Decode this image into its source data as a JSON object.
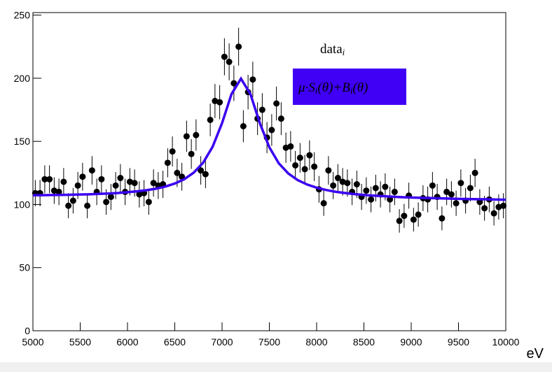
{
  "chart_data": {
    "type": "scatter",
    "x_label": "eV",
    "xlim": [
      5000,
      10000
    ],
    "ylim": [
      0,
      252
    ],
    "xticks": [
      5000,
      5500,
      6000,
      6500,
      7000,
      7500,
      8000,
      8500,
      9000,
      9500,
      10000
    ],
    "yticks": [
      0,
      50,
      100,
      150,
      200,
      250
    ],
    "series": [
      {
        "name": [
          "data",
          "i"
        ],
        "color": "#000000",
        "x": [
          5025,
          5075,
          5125,
          5175,
          5225,
          5275,
          5325,
          5375,
          5425,
          5475,
          5525,
          5575,
          5625,
          5675,
          5725,
          5775,
          5825,
          5875,
          5925,
          5975,
          6025,
          6075,
          6125,
          6175,
          6225,
          6275,
          6325,
          6375,
          6425,
          6475,
          6525,
          6575,
          6625,
          6675,
          6725,
          6775,
          6825,
          6875,
          6925,
          6975,
          7025,
          7075,
          7125,
          7175,
          7225,
          7275,
          7325,
          7375,
          7425,
          7475,
          7525,
          7575,
          7625,
          7675,
          7725,
          7775,
          7825,
          7875,
          7925,
          7975,
          8025,
          8075,
          8125,
          8175,
          8225,
          8275,
          8325,
          8375,
          8425,
          8475,
          8525,
          8575,
          8625,
          8675,
          8725,
          8775,
          8825,
          8875,
          8925,
          8975,
          9025,
          9075,
          9125,
          9175,
          9225,
          9275,
          9325,
          9375,
          9425,
          9475,
          9525,
          9575,
          9625,
          9675,
          9725,
          9775,
          9825,
          9875,
          9925,
          9975
        ],
        "values": [
          109,
          109,
          120,
          120,
          111,
          110,
          118,
          99,
          103,
          115,
          122,
          99,
          127,
          110,
          120,
          102,
          106,
          115,
          121,
          110,
          118,
          117,
          108,
          109,
          102,
          117,
          115,
          116,
          133,
          142,
          125,
          122,
          154,
          140,
          155,
          127,
          124,
          167,
          182,
          181,
          217,
          213,
          196,
          225,
          162,
          189,
          199,
          168,
          175,
          153,
          159,
          180,
          168,
          145,
          146,
          131,
          137,
          128,
          139,
          130,
          112,
          101,
          127,
          115,
          121,
          118,
          117,
          110,
          116,
          106,
          111,
          104,
          113,
          108,
          114,
          104,
          110,
          87,
          91,
          107,
          88,
          92,
          105,
          104,
          115,
          106,
          89,
          110,
          108,
          101,
          117,
          103,
          113,
          125,
          102,
          97,
          104,
          93,
          98,
          99
        ],
        "errors": [
          10.4,
          10.4,
          11.0,
          11.0,
          10.5,
          10.5,
          10.9,
          9.9,
          10.1,
          10.7,
          11.0,
          9.9,
          11.3,
          10.5,
          11.0,
          10.1,
          10.3,
          10.7,
          11.0,
          10.5,
          10.9,
          10.8,
          10.4,
          10.4,
          10.1,
          10.8,
          10.7,
          10.8,
          11.5,
          11.9,
          11.2,
          11.0,
          12.4,
          11.8,
          12.4,
          11.3,
          11.1,
          12.9,
          13.5,
          13.5,
          14.7,
          14.6,
          14.0,
          15.0,
          12.7,
          13.7,
          14.1,
          13.0,
          13.2,
          12.4,
          12.6,
          13.4,
          13.0,
          12.0,
          12.1,
          11.4,
          11.7,
          11.3,
          11.8,
          11.4,
          10.6,
          10.0,
          11.3,
          10.7,
          11.0,
          10.9,
          10.8,
          10.5,
          10.8,
          10.3,
          10.5,
          10.2,
          10.6,
          10.4,
          10.7,
          10.2,
          10.5,
          9.3,
          9.5,
          10.3,
          9.4,
          9.6,
          10.2,
          10.2,
          10.7,
          10.3,
          9.4,
          10.5,
          10.4,
          10.0,
          10.8,
          10.1,
          10.6,
          11.2,
          10.1,
          9.8,
          10.2,
          9.6,
          9.9,
          9.9
        ]
      },
      {
        "name": [
          "μ·S",
          "i",
          "(θ)+B",
          "i",
          "(θ)"
        ],
        "type": "line",
        "color": "#3a00f0",
        "x": [
          5000,
          5100,
          5200,
          5300,
          5400,
          5500,
          5600,
          5700,
          5800,
          5900,
          6000,
          6100,
          6200,
          6300,
          6400,
          6500,
          6600,
          6700,
          6800,
          6900,
          7000,
          7100,
          7200,
          7300,
          7400,
          7500,
          7600,
          7700,
          7800,
          7900,
          8000,
          8100,
          8200,
          8300,
          8400,
          8500,
          8600,
          8700,
          8800,
          8900,
          9000,
          9100,
          9200,
          9300,
          9400,
          9500,
          9600,
          9700,
          9800,
          9900,
          10000
        ],
        "values": [
          107.3,
          107.4,
          107.5,
          107.6,
          107.7,
          107.9,
          108.1,
          108.4,
          108.7,
          109.1,
          109.7,
          110.4,
          111.3,
          112.5,
          114.2,
          116.6,
          120.0,
          125.2,
          133.1,
          145.7,
          164.5,
          187.5,
          199.7,
          187.4,
          164.3,
          145.3,
          132.6,
          124.6,
          119.3,
          115.8,
          113.3,
          111.5,
          110.1,
          109.1,
          108.2,
          107.6,
          107.0,
          106.6,
          106.2,
          105.8,
          105.5,
          105.3,
          105.1,
          104.9,
          104.7,
          104.5,
          104.3,
          104.2,
          104.1,
          103.9,
          103.8
        ]
      }
    ]
  }
}
